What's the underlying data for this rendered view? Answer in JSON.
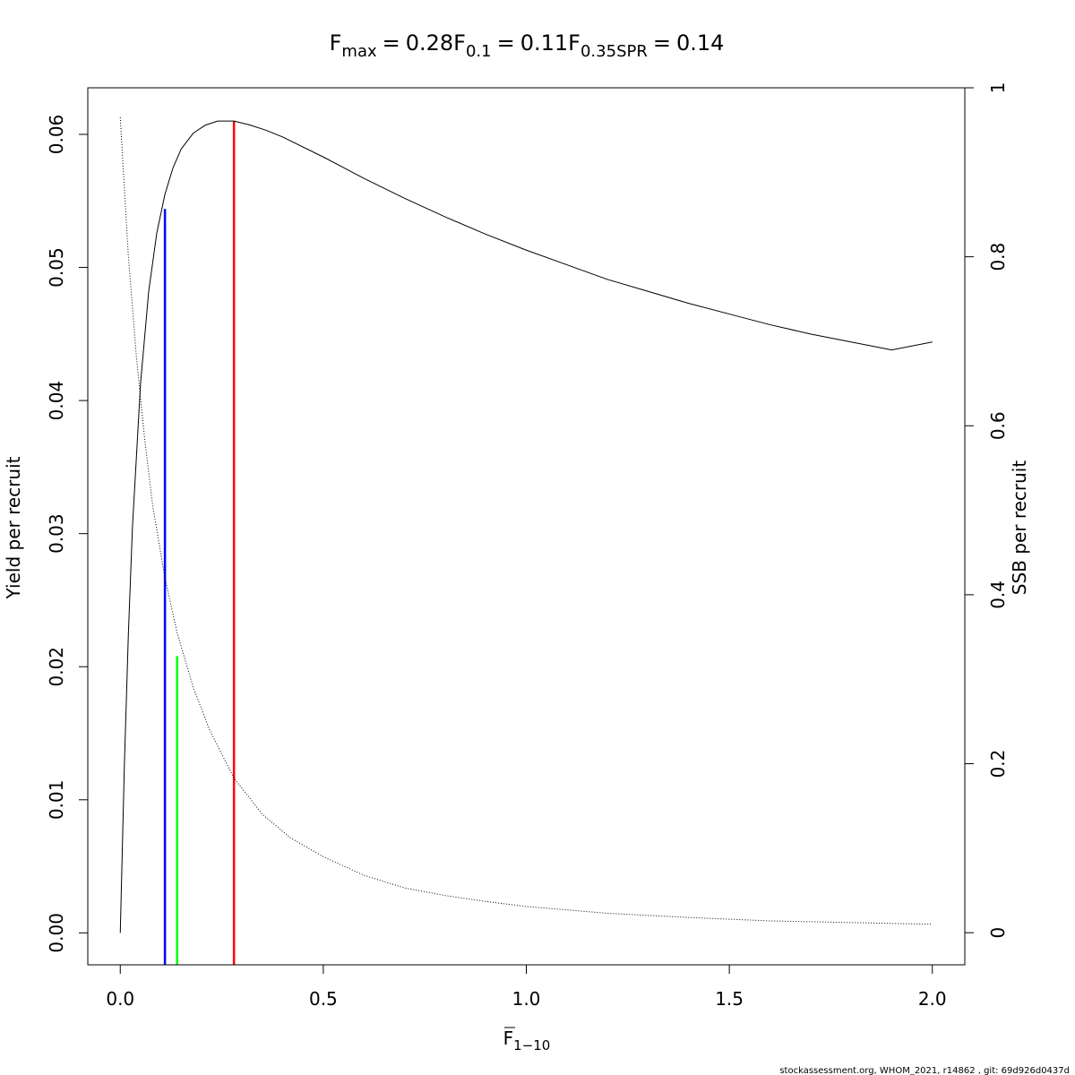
{
  "chart_data": {
    "type": "line",
    "title_parts": [
      {
        "symbol": "F",
        "subscript": "max",
        "equals": "=",
        "value": "0.28"
      },
      {
        "symbol": "F",
        "subscript": "0.1",
        "equals": "=",
        "value": "0.11"
      },
      {
        "symbol": "F",
        "subscript": "0.35SPR",
        "equals": "=",
        "value": "0.14"
      }
    ],
    "xlabel": {
      "symbol": "F",
      "subscript": "1−10"
    },
    "ylabel_left": "Yield per recruit",
    "ylabel_right": "SSB per recruit",
    "xlim": [
      -0.08,
      2.08
    ],
    "ylim_left": [
      -0.0024,
      0.0635
    ],
    "ylim_right": [
      -0.038,
      1.0
    ],
    "x_ticks": [
      {
        "value": 0.0,
        "label": "0.0"
      },
      {
        "value": 0.5,
        "label": "0.5"
      },
      {
        "value": 1.0,
        "label": "1.0"
      },
      {
        "value": 1.5,
        "label": "1.5"
      },
      {
        "value": 2.0,
        "label": "2.0"
      }
    ],
    "y_left_ticks": [
      {
        "value": 0.0,
        "label": "0.00"
      },
      {
        "value": 0.01,
        "label": "0.01"
      },
      {
        "value": 0.02,
        "label": "0.02"
      },
      {
        "value": 0.03,
        "label": "0.03"
      },
      {
        "value": 0.04,
        "label": "0.04"
      },
      {
        "value": 0.05,
        "label": "0.05"
      },
      {
        "value": 0.06,
        "label": "0.06"
      }
    ],
    "y_right_ticks": [
      {
        "value": 0.0,
        "label": "0"
      },
      {
        "value": 0.2,
        "label": "0.2"
      },
      {
        "value": 0.4,
        "label": "0.4"
      },
      {
        "value": 0.6,
        "label": "0.6"
      },
      {
        "value": 0.8,
        "label": "0.8"
      },
      {
        "value": 1.0,
        "label": "1"
      }
    ],
    "series": [
      {
        "axis": "left",
        "style": "solid",
        "color": "#000000",
        "x": [
          0.0,
          0.01,
          0.02,
          0.03,
          0.05,
          0.07,
          0.09,
          0.11,
          0.13,
          0.15,
          0.18,
          0.21,
          0.24,
          0.28,
          0.32,
          0.36,
          0.4,
          0.5,
          0.6,
          0.7,
          0.8,
          0.9,
          1.0,
          1.1,
          1.2,
          1.3,
          1.4,
          1.5,
          1.6,
          1.7,
          1.8,
          1.9,
          2.0
        ],
        "y": [
          0.0,
          0.0125,
          0.0225,
          0.0305,
          0.0413,
          0.0482,
          0.0526,
          0.0555,
          0.0575,
          0.0589,
          0.0601,
          0.0607,
          0.061,
          0.061,
          0.0607,
          0.0603,
          0.0598,
          0.0583,
          0.0567,
          0.0552,
          0.0538,
          0.0525,
          0.0513,
          0.0502,
          0.0491,
          0.0482,
          0.0473,
          0.0465,
          0.0457,
          0.045,
          0.0444,
          0.0438,
          0.0444
        ]
      },
      {
        "axis": "right",
        "style": "dotted",
        "color": "#000000",
        "x": [
          0.0,
          0.02,
          0.04,
          0.06,
          0.08,
          0.11,
          0.14,
          0.18,
          0.22,
          0.28,
          0.35,
          0.42,
          0.5,
          0.6,
          0.7,
          0.8,
          0.9,
          1.0,
          1.2,
          1.4,
          1.6,
          1.8,
          2.0
        ],
        "y": [
          0.965,
          0.8,
          0.68,
          0.585,
          0.505,
          0.42,
          0.355,
          0.29,
          0.24,
          0.183,
          0.14,
          0.112,
          0.09,
          0.068,
          0.053,
          0.044,
          0.037,
          0.031,
          0.023,
          0.018,
          0.014,
          0.012,
          0.01
        ]
      }
    ],
    "reference_lines": [
      {
        "name": "F0.1",
        "x": 0.11,
        "axis": "left",
        "y_top": 0.0544,
        "color": "#0000ff"
      },
      {
        "name": "F0.35SPR",
        "x": 0.14,
        "axis": "left",
        "y_top": 0.0208,
        "color": "#00ff00"
      },
      {
        "name": "Fmax",
        "x": 0.28,
        "axis": "left",
        "y_top": 0.061,
        "color": "#ff0000"
      }
    ]
  },
  "footer": "stockassessment.org, WHOM_2021, r14862 , git: 69d926d0437d"
}
